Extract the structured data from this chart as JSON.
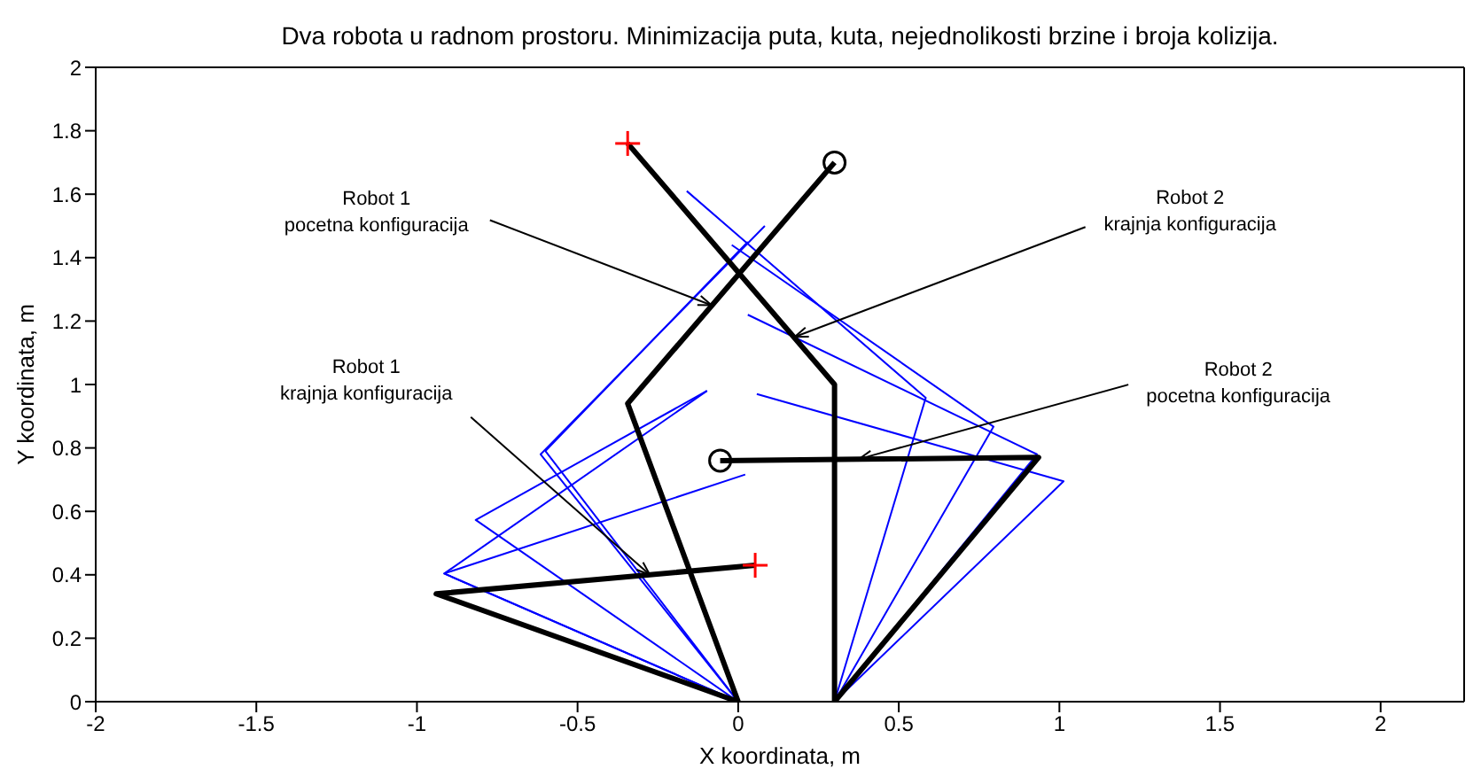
{
  "chart_data": {
    "type": "line",
    "title": "Dva robota u radnom prostoru. Minimizacija puta, kuta, nejednolikosti brzine i broja kolizija.",
    "xlabel": "X koordinata, m",
    "ylabel": "Y koordinata, m",
    "xlim": [
      -2,
      2.26
    ],
    "xticks": [
      -2,
      -1.5,
      -1,
      -0.5,
      0,
      0.5,
      1,
      1.5,
      2
    ],
    "ylim": [
      0,
      2
    ],
    "yticks": [
      0,
      0.2,
      0.4,
      0.6,
      0.8,
      1,
      1.2,
      1.4,
      1.6,
      1.8,
      2
    ],
    "series": [
      {
        "color": "#0000ff",
        "x": [
          0,
          -0.615,
          0.083
        ],
        "values": [
          0,
          0.78,
          1.5
        ]
      },
      {
        "color": "#0000ff",
        "x": [
          0,
          -0.6,
          0.03
        ],
        "values": [
          0,
          0.79,
          1.45
        ]
      },
      {
        "color": "#0000ff",
        "x": [
          0,
          -0.817,
          -0.097
        ],
        "values": [
          0,
          0.573,
          0.98
        ]
      },
      {
        "color": "#0000ff",
        "x": [
          0,
          -0.915,
          -0.097
        ],
        "values": [
          0,
          0.404,
          0.98
        ]
      },
      {
        "color": "#0000ff",
        "x": [
          0,
          -0.915,
          0.022
        ],
        "values": [
          0,
          0.404,
          0.716
        ]
      },
      {
        "color": "#0000ff",
        "x": [
          0.3,
          0.584,
          -0.16
        ],
        "values": [
          0,
          0.958,
          1.61
        ]
      },
      {
        "color": "#0000ff",
        "x": [
          0.3,
          0.795,
          -0.02
        ],
        "values": [
          0,
          0.867,
          1.44
        ]
      },
      {
        "color": "#0000ff",
        "x": [
          0.3,
          0.93,
          0.03
        ],
        "values": [
          0,
          0.78,
          1.22
        ]
      },
      {
        "color": "#0000ff",
        "x": [
          0.3,
          1.013,
          0.058
        ],
        "values": [
          0,
          0.695,
          0.97
        ]
      },
      {
        "color": "#000000",
        "x": [
          0,
          -0.344,
          0.3
        ],
        "values": [
          0,
          0.94,
          1.7
        ]
      },
      {
        "color": "#000000",
        "x": [
          0,
          -0.94,
          0.053
        ],
        "values": [
          0,
          0.34,
          0.43
        ]
      },
      {
        "color": "#000000",
        "x": [
          0.3,
          0.935,
          -0.056
        ],
        "values": [
          0,
          0.77,
          0.76
        ]
      },
      {
        "color": "#000000",
        "x": [
          0.3,
          0.3,
          -0.344
        ],
        "values": [
          0,
          1.0,
          1.76
        ]
      },
      {
        "type": "scatter",
        "marker": "cross",
        "color": "#ff0000",
        "x": [
          -0.344,
          0.053
        ],
        "values": [
          1.76,
          0.43
        ]
      },
      {
        "type": "scatter",
        "marker": "circle",
        "color": "#000000",
        "x": [
          0.3,
          -0.056
        ],
        "values": [
          1.7,
          0.76
        ]
      }
    ],
    "annotations": [
      {
        "text": "Robot 1\npocetna konfiguracija",
        "x": -0.083,
        "y": 1.25
      },
      {
        "text": "Robot 1\nkrajnja konfiguracija",
        "x": -0.275,
        "y": 0.4
      },
      {
        "text": "Robot 2\nkrajnja konfiguracija",
        "x": 0.176,
        "y": 1.15
      },
      {
        "text": "Robot 2\npocetna konfiguracija",
        "x": 0.376,
        "y": 0.765
      }
    ]
  }
}
